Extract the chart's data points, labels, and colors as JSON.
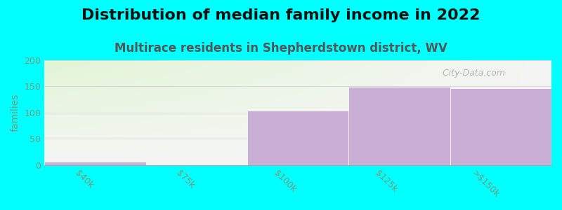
{
  "title": "Distribution of median family income in 2022",
  "subtitle": "Multirace residents in Shepherdstown district, WV",
  "categories": [
    "$40k",
    "$75k",
    "$100k",
    "$125k",
    ">$150k"
  ],
  "values": [
    7,
    0,
    104,
    149,
    147
  ],
  "bar_color": "#c9aed6",
  "bar_edge_color": "#c9aed6",
  "bg_color": "#00FFFF",
  "plot_bg_top": "#f5f5f0",
  "plot_bg_bottom_left": "#dff0d8",
  "ylabel": "families",
  "ylim": [
    0,
    200
  ],
  "yticks": [
    0,
    50,
    100,
    150,
    200
  ],
  "watermark": " City-Data.com",
  "title_fontsize": 16,
  "subtitle_fontsize": 12,
  "tick_color": "#7a9a7a",
  "label_color": "#888888",
  "subtitle_color": "#555555",
  "title_color": "#111111"
}
